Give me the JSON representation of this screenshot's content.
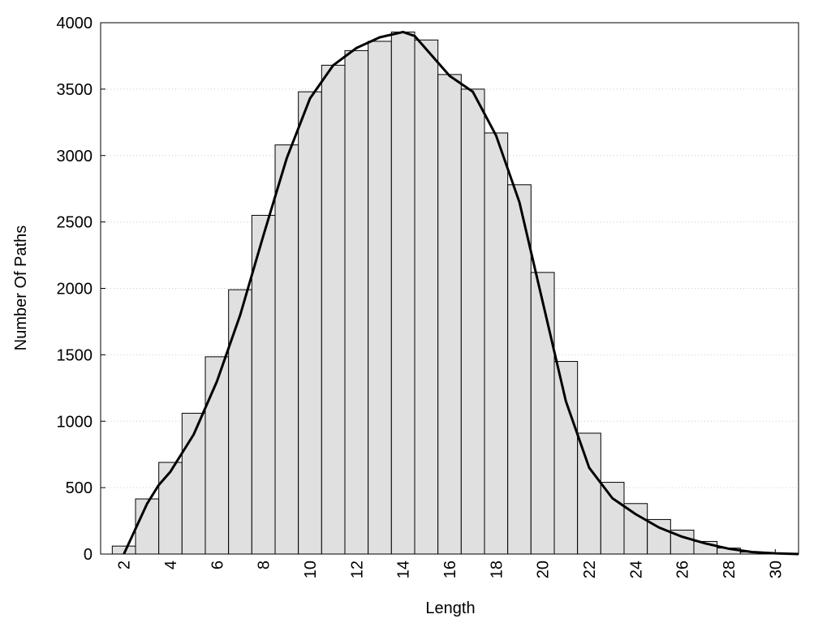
{
  "chart_data": {
    "type": "histogram",
    "xlabel": "Length",
    "ylabel": "Number Of Paths",
    "bins": [
      1.5,
      2.5,
      3.5,
      4.5,
      5.5,
      6.5,
      7.5,
      8.5,
      9.5,
      10.5,
      11.5,
      12.5,
      13.5,
      14.5,
      15.5,
      16.5,
      17.5,
      18.5,
      19.5,
      20.5,
      21.5,
      22.5,
      23.5,
      24.5,
      25.5,
      26.5,
      27.5,
      28.5,
      29.5,
      30.5
    ],
    "values": [
      60,
      415,
      690,
      1060,
      1485,
      1990,
      2550,
      3080,
      3480,
      3680,
      3790,
      3860,
      3930,
      3870,
      3610,
      3500,
      3170,
      2780,
      2120,
      1450,
      910,
      540,
      380,
      260,
      180,
      95,
      45,
      15,
      5
    ],
    "color": "#e0e0e0",
    "line": {
      "color": "#000000",
      "x": [
        2,
        3,
        3.5,
        4,
        5,
        6,
        7,
        8,
        9,
        10,
        11,
        12,
        13,
        14,
        14.5,
        15,
        16,
        17,
        18,
        19,
        20,
        21,
        22,
        23,
        24,
        25,
        26,
        27,
        28,
        29,
        30,
        31
      ],
      "values": [
        0,
        380,
        520,
        620,
        900,
        1300,
        1800,
        2400,
        2980,
        3430,
        3680,
        3810,
        3890,
        3930,
        3900,
        3800,
        3600,
        3480,
        3150,
        2650,
        1900,
        1150,
        650,
        420,
        300,
        200,
        130,
        80,
        40,
        15,
        5,
        0
      ]
    },
    "xlim": [
      1,
      31
    ],
    "ylim": [
      0,
      4000
    ],
    "xticks": [
      2,
      4,
      6,
      8,
      10,
      12,
      14,
      16,
      18,
      20,
      22,
      24,
      26,
      28,
      30
    ],
    "yticks": [
      0,
      500,
      1000,
      1500,
      2000,
      2500,
      3000,
      3500,
      4000
    ],
    "grid": true
  }
}
